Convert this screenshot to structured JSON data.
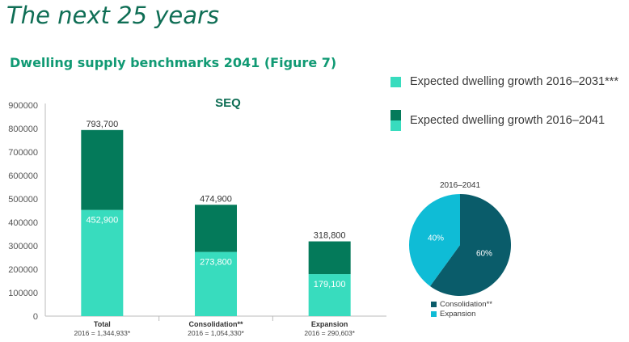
{
  "page": {
    "title": "The next 25 years",
    "figure_title": "Dwelling supply benchmarks 2041 (Figure 7)"
  },
  "legend": {
    "items": [
      {
        "label": "Expected dwelling growth 2016–2031***"
      },
      {
        "label": "Expected dwelling growth 2016–2041"
      }
    ]
  },
  "colors": {
    "dark_green": "#047a5a",
    "teal": "#38dcbe",
    "pie_dark": "#0a5c6a",
    "pie_light": "#0fbcd6",
    "title_green": "#0f6e55"
  },
  "chart_data": [
    {
      "type": "bar",
      "stacked": true,
      "title": "SEQ",
      "categories": [
        "Total",
        "Consolidation**",
        "Expansion"
      ],
      "category_notes": [
        "2016 = 1,344,933*",
        "2016 = 1,054,330*",
        "2016 = 290,603*"
      ],
      "series": [
        {
          "name": "Expected dwelling growth 2016–2031***",
          "values": [
            452900,
            273800,
            179100
          ],
          "labels": [
            "452,900",
            "273,800",
            "179,100"
          ]
        },
        {
          "name": "Expected dwelling growth 2016–2041",
          "values": [
            340800,
            201100,
            139700
          ]
        }
      ],
      "totals": [
        793700,
        474900,
        318800
      ],
      "total_labels": [
        "793,700",
        "474,900",
        "318,800"
      ],
      "ylim": [
        0,
        900000
      ],
      "yticks": [
        0,
        100000,
        200000,
        300000,
        400000,
        500000,
        600000,
        700000,
        800000,
        900000
      ],
      "xlabel": "",
      "ylabel": ""
    },
    {
      "type": "pie",
      "title": "2016–2041",
      "slices": [
        {
          "label": "Consolidation**",
          "value": 60,
          "text": "60%"
        },
        {
          "label": "Expansion",
          "value": 40,
          "text": "40%"
        }
      ]
    }
  ]
}
